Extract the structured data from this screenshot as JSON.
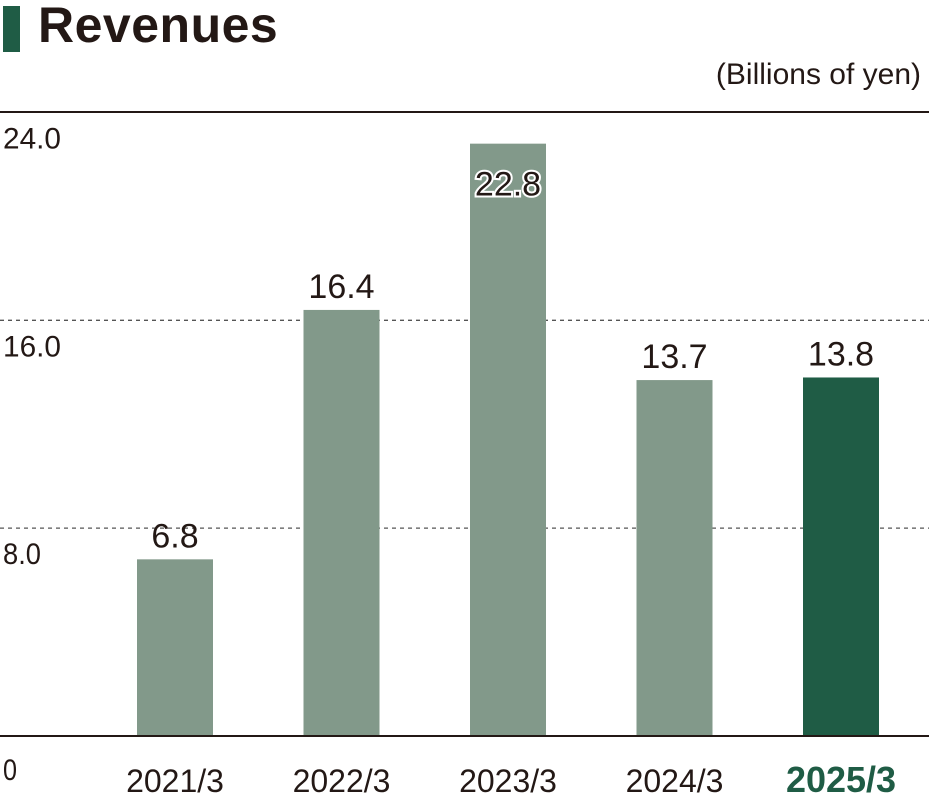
{
  "chart_data": {
    "type": "bar",
    "title": "Revenues",
    "unit": "(Billions of yen)",
    "categories": [
      "2021/3",
      "2022/3",
      "2023/3",
      "2024/3",
      "2025/3"
    ],
    "values": [
      6.8,
      16.4,
      22.8,
      13.7,
      13.8
    ],
    "value_labels": [
      "6.8",
      "16.4",
      "22.8",
      "13.7",
      "13.8"
    ],
    "highlight_index": 4,
    "yticks": [
      0,
      8,
      16,
      24
    ],
    "ytick_labels": [
      "0",
      "8.0",
      "16.0",
      "24.0"
    ],
    "ylim": [
      0,
      24
    ],
    "grid": "dashed at 8.0 and 16.0",
    "colors": {
      "bar": "#82998a",
      "highlight_bar": "#1f5c45",
      "accent": "#1f5c45",
      "text": "#231815",
      "axis": "#231815",
      "grid": "#555555"
    }
  }
}
